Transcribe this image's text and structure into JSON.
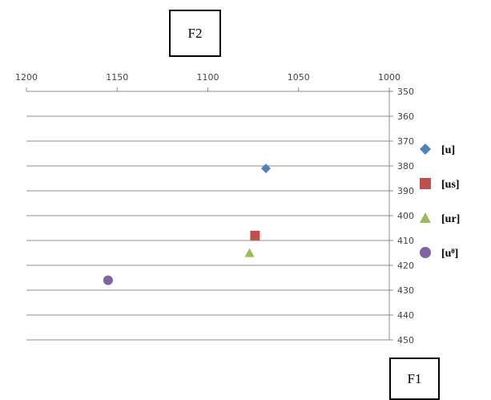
{
  "chart_data": {
    "type": "scatter",
    "title": "",
    "x_axis_label": "F2",
    "y_axis_label": "F1",
    "xlim": [
      1000,
      1200
    ],
    "x_reversed": true,
    "x_ticks": [
      1200,
      1150,
      1100,
      1050,
      1000
    ],
    "ylim": [
      350,
      450
    ],
    "y_reversed": true,
    "y_ticks": [
      350,
      360,
      370,
      380,
      390,
      400,
      410,
      420,
      430,
      440,
      450
    ],
    "grid": "horizontal",
    "legend_position": "right",
    "series": [
      {
        "name": "[u]",
        "marker": "diamond",
        "color": "#4F81BD",
        "points": [
          {
            "x": 1068,
            "y": 381
          }
        ]
      },
      {
        "name": "[us]",
        "marker": "square",
        "color": "#C0504D",
        "points": [
          {
            "x": 1074,
            "y": 408
          }
        ]
      },
      {
        "name": "[ur]",
        "marker": "triangle",
        "color": "#9BBB59",
        "points": [
          {
            "x": 1077,
            "y": 415
          }
        ]
      },
      {
        "name": "[uᶿ]",
        "marker": "circle",
        "color": "#8064A2",
        "points": [
          {
            "x": 1155,
            "y": 426
          }
        ]
      }
    ]
  }
}
